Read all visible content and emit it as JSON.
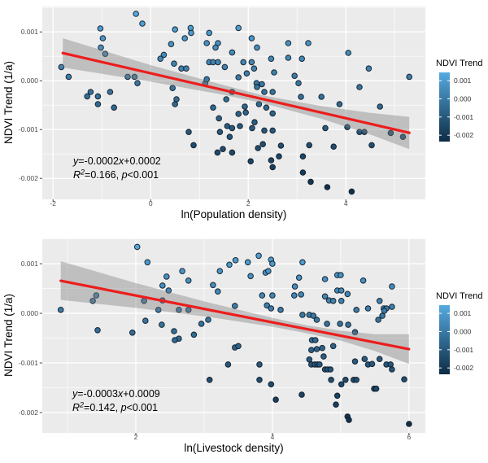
{
  "figure": {
    "background": "#ffffff",
    "panel_background": "#ebebeb",
    "grid_color": "#ffffff",
    "tick_label_color": "#4d4d4d",
    "axis_title_color": "#000000",
    "regression_color": "#ec1d1d",
    "band_color_rgba": "rgba(125,125,125,0.40)",
    "point_stroke": "rgba(12,22,34,0.9)"
  },
  "color_scale": {
    "low_color": "#0D2B45",
    "high_color": "#56AAE0",
    "domain": [
      -0.0024,
      0.0015
    ]
  },
  "chart_data": [
    {
      "type": "scatter",
      "title": "",
      "xlabel": "ln(Population density)",
      "ylabel": "NDVI Trend (1/a)",
      "xlim": [
        -2.22,
        5.63
      ],
      "ylim": [
        0.00152,
        -0.00243
      ],
      "xticks": [
        -2,
        0,
        2,
        4
      ],
      "xtick_labels": [
        "-2",
        "0",
        "2",
        "4"
      ],
      "minor_xticks": [
        -1,
        1,
        3,
        5
      ],
      "yticks": [
        0.001,
        0.0,
        -0.001,
        -0.002
      ],
      "ytick_labels": [
        "0.001",
        "0.000",
        "-0.001",
        "-0.002"
      ],
      "minor_yticks": [
        0.0015,
        0.0005,
        -0.0005,
        -0.0015
      ],
      "grid": true,
      "legend": {
        "title": "NDVI Trend",
        "position": "right",
        "tick_values": [
          0.001,
          0.0,
          -0.001,
          -0.002
        ],
        "tick_labels": [
          "0.001",
          "0.000",
          "-0.001",
          "-0.002"
        ],
        "bar_domain": [
          0.00145,
          -0.00235
        ]
      },
      "annotation": {
        "equation_segments": [
          [
            "i",
            "y"
          ],
          [
            "n",
            "=-0.0002"
          ],
          [
            "i",
            "x"
          ],
          [
            "n",
            "+0.0002"
          ]
        ],
        "stats_segments": [
          [
            "i",
            "R"
          ],
          [
            "sup",
            "2"
          ],
          [
            "n",
            "=0.166, "
          ],
          [
            "i",
            "p"
          ],
          [
            "n",
            "<0.001"
          ]
        ],
        "equation_text": "y=-0.0002x+0.0002",
        "stats_text": "R2=0.166, p<0.001"
      },
      "regression_line": [
        [
          -1.8,
          0.000567
        ],
        [
          5.3,
          -0.001067
        ]
      ],
      "confidence_band": [
        [
          -1.8,
          0.00087
        ],
        [
          0,
          0.00032
        ],
        [
          1.5,
          -9e-05
        ],
        [
          2.3,
          -0.0003
        ],
        [
          3.5,
          -0.00052
        ],
        [
          4.5,
          -0.00066
        ],
        [
          5.3,
          -0.00074
        ],
        [
          5.3,
          -0.0014
        ],
        [
          4.5,
          -0.0011
        ],
        [
          3.5,
          -0.00078
        ],
        [
          2.3,
          -0.00046
        ],
        [
          1.5,
          -0.00029
        ],
        [
          0,
          -2e-05
        ],
        [
          -1.8,
          0.00027
        ]
      ],
      "points": [
        [
          -0.3,
          0.00137
        ],
        [
          -0.17,
          0.00117
        ],
        [
          -1.03,
          0.00107
        ],
        [
          0.5,
          0.00105
        ],
        [
          0.82,
          0.00108
        ],
        [
          0.7,
          0.00087
        ],
        [
          0.83,
          0.00098
        ],
        [
          -0.98,
          0.00087
        ],
        [
          1.2,
          0.00098
        ],
        [
          0.42,
          0.00075
        ],
        [
          1.15,
          0.00077
        ],
        [
          -1.02,
          0.00068
        ],
        [
          1.38,
          0.00077
        ],
        [
          1.33,
          0.00068
        ],
        [
          -0.93,
          0.00055
        ],
        [
          0.27,
          0.00053
        ],
        [
          0.2,
          0.00045
        ],
        [
          1.67,
          0.00058
        ],
        [
          1.2,
          0.00038
        ],
        [
          1.28,
          0.00038
        ],
        [
          1.38,
          0.00038
        ],
        [
          -1.83,
          0.00028
        ],
        [
          0.48,
          0.00035
        ],
        [
          0.63,
          0.00025
        ],
        [
          0.73,
          0.00025
        ],
        [
          1.52,
          0.00028
        ],
        [
          -1.68,
          8e-05
        ],
        [
          -0.47,
          8e-05
        ],
        [
          -0.33,
          8e-05
        ],
        [
          -0.27,
          -5e-05
        ],
        [
          1.12,
          -5e-05
        ],
        [
          1.15,
          3e-05
        ],
        [
          0.45,
          -0.00015
        ],
        [
          -1.23,
          -0.00023
        ],
        [
          -1.08,
          -0.00032
        ],
        [
          -1.3,
          -0.00032
        ],
        [
          -0.83,
          -0.00023
        ],
        [
          0.53,
          -0.00038
        ],
        [
          1.55,
          -0.00038
        ],
        [
          1.67,
          -0.00023
        ],
        [
          1.8,
          0.00108
        ],
        [
          2.07,
          0.00087
        ],
        [
          2.82,
          0.00077
        ],
        [
          3.23,
          0.00077
        ],
        [
          2.18,
          0.00068
        ],
        [
          4.05,
          0.00057
        ],
        [
          1.9,
          0.00038
        ],
        [
          2.07,
          0.00038
        ],
        [
          2.47,
          0.00045
        ],
        [
          2.82,
          0.00047
        ],
        [
          3.1,
          0.00045
        ],
        [
          2.12,
          0.00025
        ],
        [
          4.47,
          0.00025
        ],
        [
          1.97,
          0.00015
        ],
        [
          2.53,
          0.00017
        ],
        [
          5.3,
          8e-05
        ],
        [
          1.8,
          7e-05
        ],
        [
          2.95,
          0.0001
        ],
        [
          2.17,
          -5e-05
        ],
        [
          2.18,
          -0.00013
        ],
        [
          2.28,
          -7e-05
        ],
        [
          3.03,
          -5e-05
        ],
        [
          4.28,
          -0.00013
        ],
        [
          2.33,
          -0.00023
        ],
        [
          2.5,
          -0.00023
        ],
        [
          3.08,
          -0.00033
        ],
        [
          3.5,
          -0.00033
        ],
        [
          -1.08,
          -0.00048
        ],
        [
          -0.75,
          -0.00055
        ],
        [
          0.5,
          -0.00048
        ],
        [
          1.28,
          -0.00055
        ],
        [
          1.4,
          -0.00077
        ],
        [
          1.57,
          -0.00093
        ],
        [
          1.67,
          -0.00097
        ],
        [
          1.42,
          -0.00105
        ],
        [
          1.62,
          -0.00115
        ],
        [
          1.37,
          -0.00147
        ],
        [
          1.48,
          -0.0014
        ],
        [
          1.67,
          -0.00147
        ],
        [
          0.78,
          -0.00105
        ],
        [
          0.88,
          -0.00132
        ],
        [
          1.93,
          -0.00053
        ],
        [
          2.22,
          -0.00048
        ],
        [
          2.37,
          -0.00055
        ],
        [
          3.87,
          -0.00048
        ],
        [
          4.7,
          -0.00053
        ],
        [
          1.8,
          -0.00068
        ],
        [
          1.95,
          -0.00065
        ],
        [
          2.5,
          -0.00067
        ],
        [
          2.13,
          -0.00085
        ],
        [
          2.08,
          -0.00097
        ],
        [
          1.83,
          -0.00093
        ],
        [
          2.33,
          -0.00102
        ],
        [
          2.5,
          -0.00102
        ],
        [
          3.58,
          -0.00097
        ],
        [
          4.03,
          -0.00095
        ],
        [
          4.28,
          -0.00105
        ],
        [
          4.38,
          -0.00105
        ],
        [
          4.92,
          -0.00107
        ],
        [
          5.17,
          -0.00115
        ],
        [
          2.3,
          -0.0013
        ],
        [
          2.2,
          -0.00138
        ],
        [
          2.67,
          -0.00133
        ],
        [
          3.25,
          -0.00132
        ],
        [
          3.75,
          -0.00135
        ],
        [
          4.53,
          -0.00132
        ],
        [
          2.05,
          -0.00165
        ],
        [
          2.47,
          -0.00163
        ],
        [
          2.63,
          -0.00155
        ],
        [
          2.5,
          -0.00177
        ],
        [
          3.12,
          -0.00155
        ],
        [
          3.12,
          -0.00188
        ],
        [
          3.28,
          -0.00207
        ],
        [
          3.62,
          -0.00218
        ],
        [
          4.12,
          -0.00227
        ]
      ]
    },
    {
      "type": "scatter",
      "title": "",
      "xlabel": "ln(Livestock density)",
      "ylabel": "NDVI Trend (1/a)",
      "xlim": [
        0.63,
        6.24
      ],
      "ylim": [
        0.00151,
        -0.00241
      ],
      "xticks": [
        2,
        4,
        6
      ],
      "xtick_labels": [
        "2",
        "4",
        "6"
      ],
      "minor_xticks": [
        1,
        3,
        5
      ],
      "yticks": [
        0.001,
        0.0,
        -0.001,
        -0.002
      ],
      "ytick_labels": [
        "0.001",
        "0.000",
        "-0.001",
        "-0.002"
      ],
      "minor_yticks": [
        0.0015,
        0.0005,
        -0.0005,
        -0.0015
      ],
      "grid": true,
      "legend": {
        "title": "NDVI Trend",
        "position": "right",
        "tick_values": [
          0.001,
          0.0,
          -0.001,
          -0.002
        ],
        "tick_labels": [
          "0.001",
          "0.000",
          "-0.001",
          "-0.002"
        ],
        "bar_domain": [
          0.00145,
          -0.00235
        ]
      },
      "annotation": {
        "equation_segments": [
          [
            "i",
            "y"
          ],
          [
            "n",
            "=-0.0003"
          ],
          [
            "i",
            "x"
          ],
          [
            "n",
            "+0.0009"
          ]
        ],
        "stats_segments": [
          [
            "i",
            "R"
          ],
          [
            "sup",
            "2"
          ],
          [
            "n",
            "=0.142, "
          ],
          [
            "i",
            "p"
          ],
          [
            "n",
            "<0.001"
          ]
        ],
        "equation_text": "y=-0.0003x+0.0009",
        "stats_text": "R2=0.142, p<0.001"
      },
      "regression_line": [
        [
          0.9,
          0.000656
        ],
        [
          6.0,
          -0.000721
        ]
      ],
      "confidence_band": [
        [
          0.9,
          0.00105
        ],
        [
          2,
          0.00061
        ],
        [
          3,
          0.00024
        ],
        [
          4,
          -9e-05
        ],
        [
          4.5,
          -0.00024
        ],
        [
          5,
          -0.00035
        ],
        [
          5.5,
          -0.00042
        ],
        [
          6,
          -0.00042
        ],
        [
          6,
          -0.00102
        ],
        [
          5.5,
          -0.00076
        ],
        [
          5,
          -0.00055
        ],
        [
          4.5,
          -0.0004
        ],
        [
          4,
          -0.00027
        ],
        [
          3,
          -6e-05
        ],
        [
          2,
          0.00011
        ],
        [
          0.9,
          0.00027
        ]
      ],
      "points": [
        [
          2.02,
          0.00134
        ],
        [
          2.17,
          0.00103
        ],
        [
          3.37,
          0.00098
        ],
        [
          2.68,
          0.00085
        ],
        [
          3.23,
          0.00085
        ],
        [
          2.45,
          0.00074
        ],
        [
          2.77,
          0.00066
        ],
        [
          2.39,
          0.00056
        ],
        [
          3.13,
          0.00057
        ],
        [
          2.48,
          0.00046
        ],
        [
          3.2,
          0.00044
        ],
        [
          1.42,
          0.00036
        ],
        [
          1.37,
          0.00025
        ],
        [
          2.12,
          0.00025
        ],
        [
          2.39,
          0.00026
        ],
        [
          0.9,
          7e-05
        ],
        [
          2.33,
          7e-05
        ],
        [
          2.63,
          7e-05
        ],
        [
          2.77,
          7e-05
        ],
        [
          3.45,
          0.00015
        ],
        [
          2.14,
          -0.00015
        ],
        [
          2.38,
          -0.00023
        ],
        [
          2.96,
          -0.00021
        ],
        [
          3.06,
          -0.00013
        ],
        [
          1.44,
          -0.00034
        ],
        [
          1.95,
          -0.00039
        ],
        [
          2.56,
          -0.00036
        ],
        [
          2.85,
          -0.00043
        ],
        [
          2.63,
          -0.00051
        ],
        [
          3.46,
          0.00107
        ],
        [
          3.64,
          0.00103
        ],
        [
          3.8,
          0.00116
        ],
        [
          3.98,
          0.00108
        ],
        [
          4.0,
          0.001
        ],
        [
          3.9,
          0.00082
        ],
        [
          3.94,
          0.00085
        ],
        [
          3.68,
          0.00075
        ],
        [
          4.44,
          0.00103
        ],
        [
          4.39,
          0.00072
        ],
        [
          4.33,
          0.00054
        ],
        [
          4.77,
          0.00069
        ],
        [
          4.95,
          0.00077
        ],
        [
          5.0,
          0.00077
        ],
        [
          5.33,
          0.00066
        ],
        [
          5.75,
          0.00054
        ],
        [
          3.85,
          0.00036
        ],
        [
          4.0,
          0.00036
        ],
        [
          4.32,
          0.00036
        ],
        [
          4.42,
          0.00038
        ],
        [
          4.95,
          0.00046
        ],
        [
          5.01,
          0.00046
        ],
        [
          5.1,
          0.00039
        ],
        [
          4.77,
          0.00034
        ],
        [
          4.83,
          0.00026
        ],
        [
          4.89,
          0.00025
        ],
        [
          5.01,
          0.00025
        ],
        [
          3.92,
          0.00016
        ],
        [
          3.98,
          0.0001
        ],
        [
          4.12,
          7e-05
        ],
        [
          5.57,
          0.00025
        ],
        [
          5.63,
          0.0001
        ],
        [
          5.67,
          0.0001
        ],
        [
          5.23,
          7e-05
        ],
        [
          5.4,
          0.0001
        ],
        [
          4.44,
          -3e-05
        ],
        [
          4.54,
          -3e-05
        ],
        [
          4.6,
          -5e-05
        ],
        [
          4.65,
          -0.00013
        ],
        [
          4.8,
          -0.00021
        ],
        [
          4.99,
          -0.00021
        ],
        [
          5.11,
          -0.00023
        ],
        [
          5.21,
          -0.00038
        ],
        [
          5.55,
          -0.00013
        ],
        [
          5.61,
          -5e-05
        ],
        [
          5.64,
          5e-05
        ],
        [
          5.75,
          0.00013
        ],
        [
          2.57,
          -0.00054
        ],
        [
          3.45,
          -0.00069
        ],
        [
          3.35,
          -0.00103
        ],
        [
          3.08,
          -0.00134
        ],
        [
          3.5,
          -0.00066
        ],
        [
          4.58,
          -0.00054
        ],
        [
          4.63,
          -0.00054
        ],
        [
          4.57,
          -0.00074
        ],
        [
          4.65,
          -0.00072
        ],
        [
          4.73,
          -0.0007
        ],
        [
          4.75,
          -0.00087
        ],
        [
          4.89,
          -0.00066
        ],
        [
          3.81,
          -0.00103
        ],
        [
          4.54,
          -0.00093
        ],
        [
          4.57,
          -0.00103
        ],
        [
          4.62,
          -0.00103
        ],
        [
          4.66,
          -0.00103
        ],
        [
          4.69,
          -0.00103
        ],
        [
          4.77,
          -0.00113
        ],
        [
          4.81,
          -0.00113
        ],
        [
          4.85,
          -0.00113
        ],
        [
          3.81,
          -0.00134
        ],
        [
          3.98,
          -0.00143
        ],
        [
          4.86,
          -0.00134
        ],
        [
          4.05,
          -0.00174
        ],
        [
          4.43,
          -0.00164
        ],
        [
          4.95,
          -0.00166
        ],
        [
          4.93,
          -0.00184
        ],
        [
          5.01,
          -0.00143
        ],
        [
          5.07,
          -0.00134
        ],
        [
          5.19,
          -0.00134
        ],
        [
          5.23,
          -0.00134
        ],
        [
          5.21,
          -0.00097
        ],
        [
          5.35,
          -0.00092
        ],
        [
          5.4,
          -0.00103
        ],
        [
          5.46,
          -0.00102
        ],
        [
          5.49,
          -0.00152
        ],
        [
          5.52,
          -0.00152
        ],
        [
          5.57,
          -0.00092
        ],
        [
          5.67,
          -0.00103
        ],
        [
          5.73,
          -0.00103
        ],
        [
          5.75,
          -0.00113
        ],
        [
          5.93,
          -0.00133
        ],
        [
          5.1,
          -0.00208
        ],
        [
          5.12,
          -0.00215
        ],
        [
          6.0,
          -0.00223
        ]
      ]
    }
  ]
}
